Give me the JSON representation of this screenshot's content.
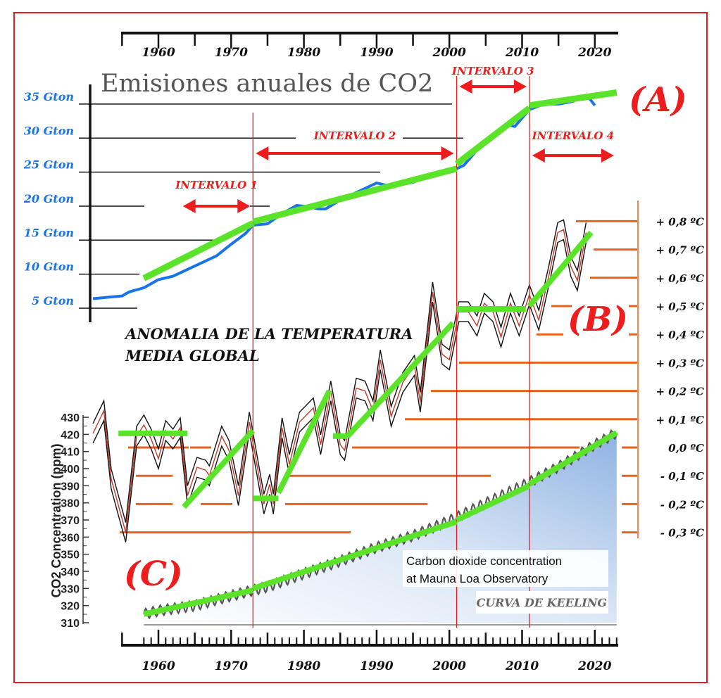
{
  "chart_data": [
    {
      "id": "emissions",
      "type": "line",
      "panel_label": "(A)",
      "title": "Emisiones anuales de CO2",
      "ylabel": "Gton",
      "yticks": [
        "5 Gton",
        "10 Gton",
        "15 Gton",
        "20 Gton",
        "25 Gton",
        "30 Gton",
        "35 Gton"
      ],
      "ytick_values": [
        5,
        10,
        15,
        20,
        25,
        30,
        35
      ],
      "ylim": [
        5,
        37
      ],
      "x": [
        1951,
        1953,
        1955,
        1956,
        1958,
        1960,
        1962,
        1965,
        1968,
        1970,
        1972,
        1973,
        1974,
        1975,
        1977,
        1979,
        1980,
        1982,
        1983,
        1985,
        1987,
        1989,
        1990,
        1992,
        1995,
        1997,
        2000,
        2002,
        2004,
        2006,
        2008,
        2009,
        2011,
        2013,
        2015,
        2017,
        2018,
        2019,
        2020
      ],
      "values": [
        6.4,
        6.6,
        6.8,
        7.4,
        8.0,
        9.2,
        9.7,
        11.2,
        12.7,
        14.4,
        16.0,
        17.2,
        17.3,
        17.4,
        18.9,
        20.1,
        20.0,
        19.6,
        19.6,
        20.9,
        21.9,
        22.9,
        23.4,
        22.9,
        23.5,
        24.4,
        25.0,
        26.0,
        28.5,
        30.5,
        32.0,
        31.7,
        34.2,
        35.0,
        35.0,
        35.4,
        36.1,
        36.2,
        34.8
      ],
      "trend_segments": [
        {
          "x": [
            1958,
            1973
          ],
          "y": [
            9.4,
            17.5
          ]
        },
        {
          "x": [
            1973,
            2001
          ],
          "y": [
            17.7,
            25.5
          ]
        },
        {
          "x": [
            2001,
            2011
          ],
          "y": [
            26.2,
            34.4
          ]
        },
        {
          "x": [
            2011,
            2023
          ],
          "y": [
            34.8,
            36.7
          ]
        }
      ],
      "series_color": "#1a74e8",
      "trend_color": "#5be32a"
    },
    {
      "id": "temperature",
      "type": "line",
      "panel_label": "(B)",
      "title": "ANOMALIA DE LA TEMPERATURA MEDIA GLOBAL",
      "title_lines": [
        "ANOMALIA DE LA TEMPERATURA",
        "MEDIA GLOBAL"
      ],
      "ylabel": "ºC",
      "yticks": [
        "+ 0,8 ºC",
        "+ 0,7 ºC",
        "+ 0,6 ºC",
        "+ 0,5 ºC",
        "+ 0,4 ºC",
        "+ 0,3 ºC",
        "+ 0,2 ºC",
        "+ 0,1 ºC",
        "0,0 ºC",
        "- 0,1 ºC",
        "- 0,2 ºC",
        "- 0,3 ºC"
      ],
      "ytick_values": [
        0.8,
        0.7,
        0.6,
        0.5,
        0.4,
        0.3,
        0.2,
        0.1,
        0.0,
        -0.1,
        -0.2,
        -0.3
      ],
      "ylim": [
        -0.3,
        0.8
      ],
      "x": [
        1951,
        1952.5,
        1953.5,
        1955.5,
        1957,
        1958,
        1959,
        1960,
        1961,
        1962,
        1963,
        1964,
        1965.3,
        1966.5,
        1967,
        1968.7,
        1969.7,
        1971,
        1972.5,
        1974.5,
        1975.3,
        1975.8,
        1977,
        1978,
        1979.4,
        1981.3,
        1982.3,
        1983.7,
        1985,
        1985.6,
        1987.2,
        1988.4,
        1989.5,
        1990.5,
        1992,
        1993.6,
        1995.2,
        1996,
        1997.7,
        1999,
        2000,
        2001.3,
        2002.6,
        2003.8,
        2004.8,
        2006,
        2007.1,
        2008.4,
        2009.6,
        2011,
        2012.3,
        2013.7,
        2014.9,
        2015.7,
        2016.7,
        2017.6,
        2018.8
      ],
      "values": [
        0.05,
        0.13,
        -0.11,
        -0.3,
        0.04,
        0.08,
        0.03,
        -0.04,
        0.06,
        0.03,
        0.07,
        -0.17,
        -0.07,
        -0.08,
        -0.1,
        0.04,
        -0.01,
        -0.17,
        0.09,
        -0.2,
        -0.13,
        -0.2,
        0.07,
        -0.06,
        0.09,
        0.14,
        0.01,
        0.2,
        0.01,
        -0.01,
        0.21,
        0.2,
        0.13,
        0.31,
        0.11,
        0.23,
        0.29,
        0.16,
        0.55,
        0.33,
        0.31,
        0.48,
        0.48,
        0.43,
        0.51,
        0.48,
        0.39,
        0.51,
        0.43,
        0.54,
        0.45,
        0.61,
        0.76,
        0.77,
        0.64,
        0.59,
        0.76
      ],
      "trend_segments": [
        {
          "x": [
            1954.5,
            1964
          ],
          "y": [
            0.05,
            0.05
          ]
        },
        {
          "x": [
            1963.5,
            1973
          ],
          "y": [
            -0.21,
            0.06
          ]
        },
        {
          "x": [
            1973,
            1976.5
          ],
          "y": [
            -0.18,
            -0.18
          ]
        },
        {
          "x": [
            1976.5,
            1983.5
          ],
          "y": [
            -0.16,
            0.2
          ]
        },
        {
          "x": [
            1984,
            1986
          ],
          "y": [
            0.04,
            0.04
          ]
        },
        {
          "x": [
            1986,
            2000.5
          ],
          "y": [
            0.04,
            0.44
          ]
        },
        {
          "x": [
            2001,
            2010.5
          ],
          "y": [
            0.49,
            0.49
          ]
        },
        {
          "x": [
            2011,
            2019.5
          ],
          "y": [
            0.5,
            0.76
          ]
        }
      ],
      "series_color": "#c0392b",
      "level_color": "#e8621c"
    },
    {
      "id": "keeling",
      "type": "area",
      "panel_label": "(C)",
      "title_lines": [
        "Carbon dioxide concentration",
        "at Mauna Loa Observatory"
      ],
      "subtitle": "CURVA DE KEELING",
      "ylabel": "CO2 Concentration (ppm)",
      "yticks": [
        "430",
        "420",
        "410",
        "400",
        "390",
        "380",
        "370",
        "360",
        "350",
        "340",
        "330",
        "320",
        "310"
      ],
      "ytick_values": [
        430,
        420,
        410,
        400,
        390,
        380,
        370,
        360,
        350,
        340,
        330,
        320,
        310
      ],
      "ylim": [
        310,
        430
      ],
      "x": [
        1958,
        1960,
        1965,
        1970,
        1975,
        1980,
        1985,
        1990,
        1995,
        2000,
        2005,
        2010,
        2015,
        2020,
        2023
      ],
      "values": [
        315,
        317,
        320,
        325.7,
        331,
        338.7,
        346,
        354,
        360.8,
        369.6,
        379.8,
        389.9,
        401,
        414,
        421
      ],
      "trend_segments": [
        {
          "x": [
            1958,
            1973
          ],
          "y": [
            315,
            329
          ]
        },
        {
          "x": [
            1973,
            2001
          ],
          "y": [
            330,
            369
          ]
        },
        {
          "x": [
            2001,
            2011
          ],
          "y": [
            370,
            390
          ]
        },
        {
          "x": [
            2011,
            2023
          ],
          "y": [
            391,
            421
          ]
        }
      ]
    }
  ],
  "time_axis": {
    "labels": [
      "1960",
      "1970",
      "1980",
      "1990",
      "2000",
      "2010",
      "2020"
    ],
    "values": [
      1960,
      1970,
      1980,
      1990,
      2000,
      2010,
      2020
    ],
    "range": [
      1952,
      2023
    ]
  },
  "intervals": [
    {
      "label": "INTERVALO 1",
      "start": 1965,
      "end": 1973
    },
    {
      "label": "INTERVALO 2",
      "start": 1973,
      "end": 2001
    },
    {
      "label": "INTERVALO 3",
      "start": 2001,
      "end": 2011
    },
    {
      "label": "INTERVALO 4",
      "start": 2011,
      "end": 2023
    }
  ],
  "interval_boundaries": [
    1973,
    2001,
    2011
  ],
  "colors": {
    "frame": "#e02020",
    "accent_red": "#ee1c1c",
    "green": "#5be32a",
    "blue": "#1a74e8",
    "orange": "#e8621c"
  }
}
